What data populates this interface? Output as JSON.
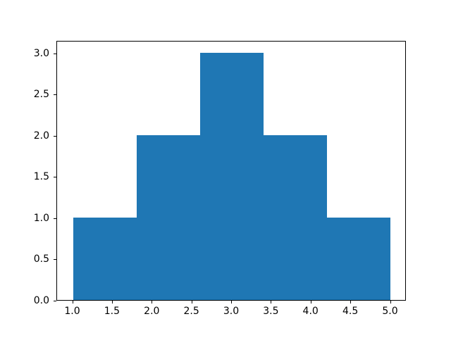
{
  "chart_data": {
    "type": "bar",
    "subtype": "histogram",
    "title": "",
    "xlabel": "",
    "ylabel": "",
    "bin_edges": [
      1.0,
      1.8,
      2.6,
      3.4,
      4.2,
      5.0
    ],
    "values": [
      1,
      2,
      3,
      2,
      1
    ],
    "xlim": [
      0.8,
      5.2
    ],
    "ylim": [
      0,
      3.15
    ],
    "x_ticks": [
      1.0,
      1.5,
      2.0,
      2.5,
      3.0,
      3.5,
      4.0,
      4.5,
      5.0
    ],
    "x_tick_labels": [
      "1.0",
      "1.5",
      "2.0",
      "2.5",
      "3.0",
      "3.5",
      "4.0",
      "4.5",
      "5.0"
    ],
    "y_ticks": [
      0.0,
      0.5,
      1.0,
      1.5,
      2.0,
      2.5,
      3.0
    ],
    "y_tick_labels": [
      "0.0",
      "0.5",
      "1.0",
      "1.5",
      "2.0",
      "2.5",
      "3.0"
    ],
    "bar_color": "#1f77b4",
    "axis_color": "#000000",
    "grid": false,
    "legend": null
  }
}
